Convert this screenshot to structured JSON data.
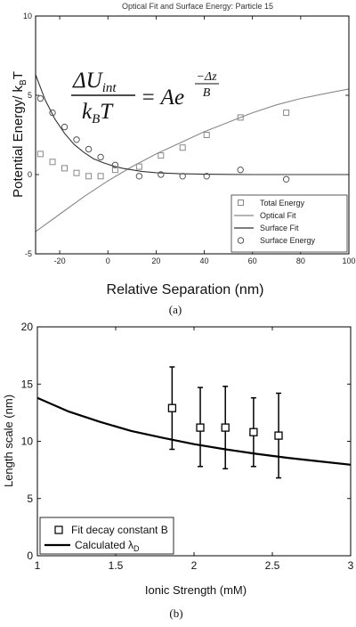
{
  "chart_data": [
    {
      "type": "scatter",
      "panel_label": "(a)",
      "title": "Optical Fit and Surface Energy: Particle 15",
      "xlabel": "Relative Separation (nm)",
      "ylabel": "Potential Energy/ k",
      "ylabel_sub": "B",
      "ylabel_end": "T",
      "xlim": [
        -30,
        100
      ],
      "ylim": [
        -5,
        10
      ],
      "xticks": [
        -20,
        0,
        20,
        40,
        60,
        80,
        100
      ],
      "yticks": [
        -5,
        0,
        5,
        10
      ],
      "equation": {
        "num_prefix": "ΔU",
        "num_sub": "int",
        "den_k": "k",
        "den_sub": "B",
        "den_T": "T",
        "rhs": "= Ae",
        "exp_num": "−Δz",
        "exp_den": "B"
      },
      "legend_position": "bottom-right",
      "series": [
        {
          "name": "Total Energy",
          "kind": "scatter",
          "marker": "square",
          "x": [
            -28,
            -23,
            -18,
            -13,
            -8,
            -3,
            3,
            13,
            22,
            31,
            41,
            55,
            74
          ],
          "y": [
            1.3,
            0.8,
            0.4,
            0.1,
            -0.1,
            -0.1,
            0.3,
            0.5,
            1.2,
            1.7,
            2.5,
            3.6,
            3.9
          ]
        },
        {
          "name": "Optical Fit",
          "kind": "line",
          "x": [
            -30,
            -20,
            -10,
            0,
            10,
            20,
            30,
            40,
            50,
            60,
            70,
            80,
            90,
            100
          ],
          "y": [
            -3.6,
            -2.5,
            -1.4,
            -0.4,
            0.5,
            1.3,
            2.0,
            2.7,
            3.3,
            3.9,
            4.4,
            4.8,
            5.1,
            5.4
          ]
        },
        {
          "name": "Surface Fit",
          "kind": "line",
          "x": [
            -30,
            -26,
            -22,
            -18,
            -14,
            -10,
            -6,
            -2,
            2,
            6,
            10,
            14,
            20,
            30,
            40,
            60,
            80,
            100
          ],
          "y": [
            6.3,
            4.7,
            3.5,
            2.6,
            1.9,
            1.4,
            1.0,
            0.75,
            0.55,
            0.4,
            0.3,
            0.2,
            0.12,
            0.05,
            0.02,
            0.0,
            0.0,
            0.0
          ]
        },
        {
          "name": "Surface Energy",
          "kind": "scatter",
          "marker": "circle",
          "x": [
            -28,
            -23,
            -18,
            -13,
            -8,
            -3,
            3,
            13,
            22,
            31,
            41,
            55,
            74
          ],
          "y": [
            4.8,
            3.9,
            3.0,
            2.2,
            1.6,
            1.1,
            0.6,
            -0.1,
            0.0,
            -0.1,
            -0.1,
            0.3,
            -0.3
          ]
        }
      ]
    },
    {
      "type": "scatter",
      "panel_label": "(b)",
      "title": "",
      "xlabel": "Ionic Strength (mM)",
      "ylabel": "Length scale (nm)",
      "xlim": [
        1,
        3
      ],
      "ylim": [
        0,
        20
      ],
      "xticks": [
        1,
        1.5,
        2,
        2.5,
        3
      ],
      "yticks": [
        0,
        5,
        10,
        15,
        20
      ],
      "legend_position": "bottom-left",
      "series": [
        {
          "name": "Fit decay constant B",
          "kind": "errorbar",
          "marker": "square",
          "x": [
            1.86,
            2.04,
            2.2,
            2.38,
            2.54
          ],
          "y": [
            12.9,
            11.2,
            11.2,
            10.8,
            10.5
          ],
          "err_low": [
            3.6,
            3.4,
            3.6,
            3.0,
            3.7
          ],
          "err_high": [
            3.6,
            3.5,
            3.6,
            3.0,
            3.7
          ]
        },
        {
          "name": "Calculated λ",
          "name_sub": "D",
          "kind": "line",
          "x": [
            1.0,
            1.2,
            1.4,
            1.6,
            1.8,
            2.0,
            2.2,
            2.4,
            2.6,
            2.8,
            3.0
          ],
          "y": [
            13.8,
            12.6,
            11.7,
            10.9,
            10.3,
            9.75,
            9.3,
            8.9,
            8.55,
            8.25,
            7.95
          ]
        }
      ]
    }
  ]
}
